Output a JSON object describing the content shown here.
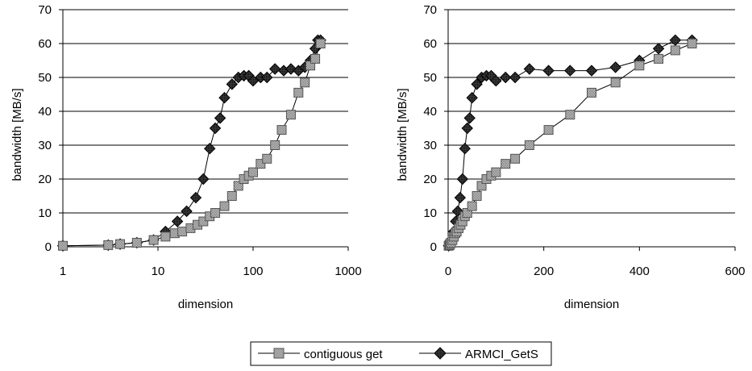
{
  "chart_data": [
    {
      "type": "line",
      "xscale": "log",
      "xlabel": "dimension",
      "ylabel": "bandwidth [MB/s]",
      "xlim": [
        1,
        1000
      ],
      "ylim": [
        0,
        70
      ],
      "xticks": [
        1,
        10,
        100,
        1000
      ],
      "xtick_labels": [
        "1",
        "10",
        "100",
        "1000"
      ],
      "yticks": [
        0,
        10,
        20,
        30,
        40,
        50,
        60,
        70
      ],
      "ytick_labels": [
        "0",
        "10",
        "20",
        "30",
        "40",
        "50",
        "60",
        "70"
      ],
      "grid": "horizontal",
      "series": [
        {
          "name": "contiguous get",
          "marker": "square",
          "x": [
            1,
            3,
            4,
            6,
            9,
            12,
            15,
            18,
            22,
            26,
            30,
            35,
            40,
            50,
            60,
            70,
            80,
            90,
            100,
            120,
            140,
            170,
            200,
            250,
            300,
            350,
            400,
            450,
            512
          ],
          "y": [
            0.3,
            0.5,
            0.8,
            1.2,
            2,
            3,
            4,
            4.5,
            5.5,
            6.5,
            7.5,
            9,
            10,
            12,
            15,
            18,
            20,
            21,
            22,
            24.5,
            26,
            30,
            34.5,
            39,
            45.5,
            48.5,
            53.5,
            55.5,
            60
          ]
        },
        {
          "name": "ARMCI_GetS",
          "marker": "diamond",
          "x": [
            1,
            3,
            4,
            6,
            9,
            12,
            16,
            20,
            25,
            30,
            35,
            40,
            45,
            50,
            60,
            70,
            80,
            90,
            100,
            120,
            140,
            170,
            210,
            250,
            300,
            350,
            400,
            450,
            480,
            512
          ],
          "y": [
            0.3,
            0.5,
            0.8,
            1.2,
            2,
            4.5,
            7.5,
            10.5,
            14.5,
            20,
            29,
            35,
            38,
            44,
            48,
            50,
            50.5,
            50.5,
            49,
            50,
            50,
            52.5,
            52,
            52.5,
            52,
            53,
            55,
            58.5,
            61,
            61
          ]
        }
      ]
    },
    {
      "type": "line",
      "xscale": "linear",
      "xlabel": "dimension",
      "ylabel": "bandwidth [MB/s]",
      "xlim": [
        0,
        600
      ],
      "ylim": [
        0,
        70
      ],
      "xticks": [
        0,
        200,
        400,
        600
      ],
      "xtick_labels": [
        "0",
        "200",
        "400",
        "600"
      ],
      "yticks": [
        0,
        10,
        20,
        30,
        40,
        50,
        60,
        70
      ],
      "ytick_labels": [
        "0",
        "10",
        "20",
        "30",
        "40",
        "50",
        "60",
        "70"
      ],
      "grid": "horizontal",
      "series": [
        {
          "name": "contiguous get",
          "marker": "square",
          "x": [
            1,
            3,
            4,
            6,
            9,
            12,
            15,
            18,
            22,
            26,
            30,
            35,
            40,
            50,
            60,
            70,
            80,
            90,
            100,
            120,
            140,
            170,
            210,
            255,
            300,
            350,
            400,
            440,
            475,
            510
          ],
          "y": [
            0.3,
            0.5,
            0.8,
            1.2,
            2,
            3,
            4,
            4.5,
            5.5,
            6.5,
            7.5,
            9,
            10,
            12,
            15,
            18,
            20,
            21,
            22,
            24.5,
            26,
            30,
            34.5,
            39,
            45.5,
            48.5,
            53.5,
            55.5,
            58,
            60
          ]
        },
        {
          "name": "ARMCI_GetS",
          "marker": "diamond",
          "x": [
            1,
            3,
            4,
            6,
            9,
            12,
            16,
            20,
            25,
            30,
            35,
            40,
            45,
            50,
            60,
            70,
            80,
            90,
            100,
            120,
            140,
            170,
            210,
            255,
            300,
            350,
            400,
            440,
            475,
            510
          ],
          "y": [
            0.3,
            0.5,
            0.8,
            1.2,
            2,
            4.5,
            7.5,
            10.5,
            14.5,
            20,
            29,
            35,
            38,
            44,
            48,
            50,
            50.5,
            50.5,
            49,
            50,
            50,
            52.5,
            52,
            52,
            52,
            53,
            55,
            58.5,
            61,
            61
          ]
        }
      ]
    }
  ],
  "legend": {
    "position": "bottom-center",
    "items": [
      "contiguous get",
      "ARMCI_GetS"
    ]
  }
}
